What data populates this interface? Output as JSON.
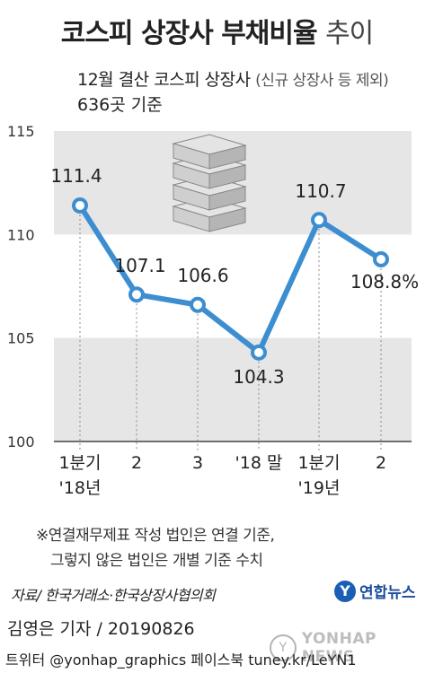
{
  "title": {
    "main": "코스피 상장사 부채비율",
    "light": "추이"
  },
  "subtitle": {
    "line1": "12월 결산 코스피 상장사",
    "line1_paren": "(신규 상장사 등 제외)",
    "line2": "636곳 기준"
  },
  "chart_data": {
    "type": "line",
    "categories": [
      "1분기\n'18년",
      "2",
      "3",
      "'18 말",
      "1분기\n'19년",
      "2"
    ],
    "values": [
      111.4,
      107.1,
      106.6,
      104.3,
      110.7,
      108.8
    ],
    "value_labels": [
      "111.4",
      "107.1",
      "106.6",
      "104.3",
      "110.7",
      "108.8%"
    ],
    "ylim": [
      100,
      115
    ],
    "yticks": [
      100,
      105,
      110,
      115
    ],
    "ytick_labels": [
      "100",
      "105",
      "110",
      "115"
    ],
    "colors": {
      "line": "#3d8ed1",
      "marker_fill": "#ffffff",
      "band": "#e6e6e6"
    },
    "grid": "alternating horizontal bands",
    "icon": "money-stack-icon"
  },
  "notes": [
    "※연결재무제표 작성 법인은 연결 기준,",
    "그렇지 않은 법인은 개별 기준 수치"
  ],
  "source": "자료/ 한국거래소·한국상장사협의회",
  "logo": {
    "mark": "Y",
    "text": "연합뉴스"
  },
  "byline": "김영은 기자 / 20190826",
  "footer": "트위터 @yonhap_graphics  페이스북 tuney.kr/LeYN1",
  "watermark": "YONHAP NEWS"
}
